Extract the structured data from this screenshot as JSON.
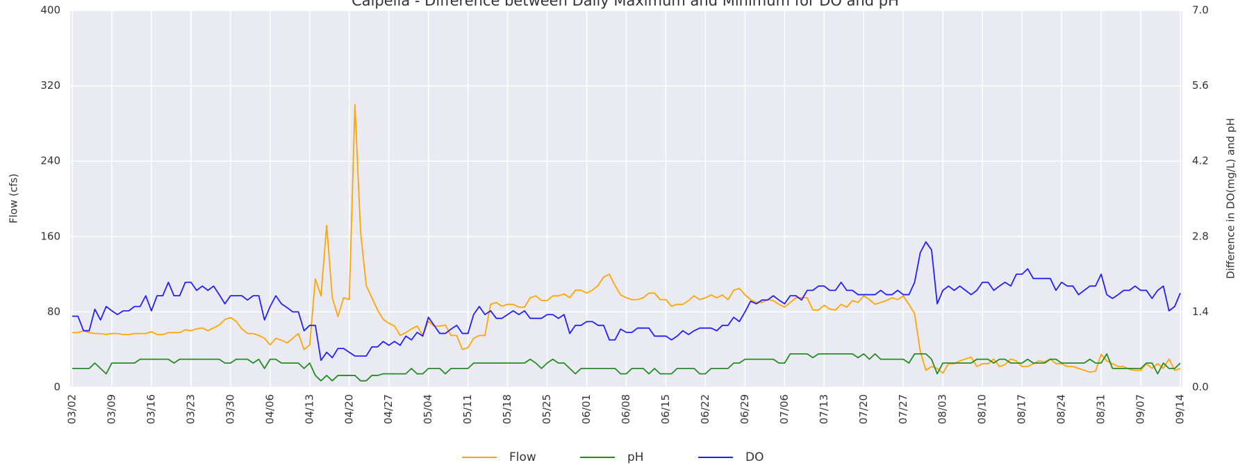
{
  "chart_data": {
    "type": "line",
    "title": "Calpella - Difference between Daily Maximum and Minimum for DO and pH",
    "y_label": "Flow (cfs)",
    "y2_label": "Difference in DO(mg/L) and pH",
    "categories": [
      "03/02",
      null,
      null,
      null,
      null,
      null,
      null,
      "03/09",
      null,
      null,
      null,
      null,
      null,
      null,
      "03/16",
      null,
      null,
      null,
      null,
      null,
      null,
      "03/23",
      null,
      null,
      null,
      null,
      null,
      null,
      "03/30",
      null,
      null,
      null,
      null,
      null,
      null,
      "04/06",
      null,
      null,
      null,
      null,
      null,
      null,
      "04/13",
      null,
      null,
      null,
      null,
      null,
      null,
      "04/20",
      null,
      null,
      null,
      null,
      null,
      null,
      "04/27",
      null,
      null,
      null,
      null,
      null,
      null,
      "05/04",
      null,
      null,
      null,
      null,
      null,
      null,
      "05/11",
      null,
      null,
      null,
      null,
      null,
      null,
      "05/18",
      null,
      null,
      null,
      null,
      null,
      null,
      "05/25",
      null,
      null,
      null,
      null,
      null,
      null,
      "06/01",
      null,
      null,
      null,
      null,
      null,
      null,
      "06/08",
      null,
      null,
      null,
      null,
      null,
      null,
      "06/15",
      null,
      null,
      null,
      null,
      null,
      null,
      "06/22",
      null,
      null,
      null,
      null,
      null,
      null,
      "06/29",
      null,
      null,
      null,
      null,
      null,
      null,
      "07/06",
      null,
      null,
      null,
      null,
      null,
      null,
      "07/13",
      null,
      null,
      null,
      null,
      null,
      null,
      "07/20",
      null,
      null,
      null,
      null,
      null,
      null,
      "07/27",
      null,
      null,
      null,
      null,
      null,
      null,
      "08/03",
      null,
      null,
      null,
      null,
      null,
      null,
      "08/10",
      null,
      null,
      null,
      null,
      null,
      null,
      "08/17",
      null,
      null,
      null,
      null,
      null,
      null,
      "08/24",
      null,
      null,
      null,
      null,
      null,
      null,
      "08/31",
      null,
      null,
      null,
      null,
      null,
      null,
      "09/07",
      null,
      null,
      null,
      null,
      null,
      null,
      "09/14"
    ],
    "series": [
      {
        "name": "Flow",
        "color": "#ffa500",
        "axis": "y",
        "values": [
          58,
          58,
          60,
          58,
          57,
          57,
          56,
          57,
          57,
          56,
          56,
          57,
          57,
          57,
          59,
          56,
          56,
          58,
          58,
          58,
          61,
          60,
          62,
          63,
          60,
          63,
          66,
          72,
          74,
          70,
          62,
          57,
          57,
          55,
          52,
          45,
          52,
          50,
          47,
          52,
          57,
          40,
          45,
          115,
          97,
          172,
          95,
          75,
          95,
          93,
          300,
          165,
          108,
          95,
          82,
          72,
          68,
          65,
          55,
          58,
          62,
          65,
          55,
          70,
          65,
          65,
          66,
          55,
          55,
          40,
          42,
          52,
          55,
          55,
          88,
          90,
          86,
          88,
          88,
          85,
          85,
          95,
          97,
          92,
          92,
          97,
          97,
          99,
          95,
          103,
          103,
          100,
          103,
          108,
          117,
          120,
          108,
          98,
          95,
          93,
          93,
          95,
          100,
          100,
          93,
          93,
          86,
          88,
          88,
          92,
          97,
          93,
          95,
          98,
          95,
          98,
          93,
          103,
          105,
          98,
          93,
          90,
          90,
          93,
          92,
          88,
          85,
          90,
          95,
          95,
          95,
          82,
          82,
          87,
          83,
          82,
          88,
          85,
          92,
          90,
          97,
          93,
          88,
          90,
          92,
          95,
          93,
          97,
          88,
          78,
          38,
          18,
          22,
          20,
          15,
          25,
          25,
          28,
          30,
          32,
          22,
          25,
          25,
          30,
          22,
          24,
          30,
          28,
          22,
          22,
          25,
          28,
          27,
          30,
          25,
          25,
          22,
          22,
          20,
          18,
          16,
          17,
          35,
          28,
          25,
          22,
          22,
          19,
          18,
          18,
          25,
          20,
          25,
          20,
          30,
          18,
          20
        ]
      },
      {
        "name": "pH",
        "color": "#228b22",
        "axis": "y2",
        "values": [
          0.35,
          0.35,
          0.35,
          0.35,
          0.45,
          0.35,
          0.25,
          0.45,
          0.45,
          0.45,
          0.45,
          0.45,
          0.52,
          0.52,
          0.52,
          0.52,
          0.52,
          0.52,
          0.45,
          0.52,
          0.52,
          0.52,
          0.52,
          0.52,
          0.52,
          0.52,
          0.52,
          0.45,
          0.45,
          0.52,
          0.52,
          0.52,
          0.45,
          0.52,
          0.35,
          0.52,
          0.52,
          0.45,
          0.45,
          0.45,
          0.45,
          0.35,
          0.45,
          0.22,
          0.12,
          0.22,
          0.12,
          0.22,
          0.22,
          0.22,
          0.22,
          0.12,
          0.12,
          0.22,
          0.22,
          0.25,
          0.25,
          0.25,
          0.25,
          0.25,
          0.35,
          0.25,
          0.25,
          0.35,
          0.35,
          0.35,
          0.25,
          0.35,
          0.35,
          0.35,
          0.35,
          0.45,
          0.45,
          0.45,
          0.45,
          0.45,
          0.45,
          0.45,
          0.45,
          0.45,
          0.45,
          0.52,
          0.45,
          0.35,
          0.45,
          0.52,
          0.45,
          0.45,
          0.35,
          0.25,
          0.35,
          0.35,
          0.35,
          0.35,
          0.35,
          0.35,
          0.35,
          0.25,
          0.25,
          0.35,
          0.35,
          0.35,
          0.25,
          0.35,
          0.25,
          0.25,
          0.25,
          0.35,
          0.35,
          0.35,
          0.35,
          0.25,
          0.25,
          0.35,
          0.35,
          0.35,
          0.35,
          0.45,
          0.45,
          0.52,
          0.52,
          0.52,
          0.52,
          0.52,
          0.52,
          0.45,
          0.45,
          0.62,
          0.62,
          0.62,
          0.62,
          0.55,
          0.62,
          0.62,
          0.62,
          0.62,
          0.62,
          0.62,
          0.62,
          0.55,
          0.62,
          0.52,
          0.62,
          0.52,
          0.52,
          0.52,
          0.52,
          0.52,
          0.45,
          0.62,
          0.62,
          0.62,
          0.52,
          0.25,
          0.45,
          0.45,
          0.45,
          0.45,
          0.45,
          0.45,
          0.52,
          0.52,
          0.52,
          0.45,
          0.52,
          0.52,
          0.45,
          0.45,
          0.45,
          0.52,
          0.45,
          0.45,
          0.45,
          0.52,
          0.52,
          0.45,
          0.45,
          0.45,
          0.45,
          0.45,
          0.52,
          0.45,
          0.45,
          0.62,
          0.35,
          0.35,
          0.35,
          0.35,
          0.35,
          0.35,
          0.45,
          0.45,
          0.25,
          0.45,
          0.35,
          0.35,
          0.45
        ]
      },
      {
        "name": "DO",
        "color": "#1f1fff",
        "axis": "y2",
        "values": [
          1.32,
          1.32,
          1.05,
          1.05,
          1.45,
          1.25,
          1.5,
          1.42,
          1.35,
          1.42,
          1.42,
          1.5,
          1.5,
          1.7,
          1.42,
          1.7,
          1.7,
          1.95,
          1.7,
          1.7,
          1.95,
          1.95,
          1.8,
          1.88,
          1.8,
          1.88,
          1.72,
          1.55,
          1.7,
          1.7,
          1.7,
          1.62,
          1.7,
          1.7,
          1.25,
          1.5,
          1.7,
          1.55,
          1.48,
          1.4,
          1.4,
          1.05,
          1.15,
          1.15,
          0.5,
          0.65,
          0.55,
          0.72,
          0.72,
          0.65,
          0.58,
          0.58,
          0.58,
          0.75,
          0.75,
          0.85,
          0.78,
          0.85,
          0.78,
          0.95,
          0.88,
          1.02,
          0.95,
          1.3,
          1.15,
          1.0,
          1.0,
          1.08,
          1.15,
          1.0,
          1.0,
          1.35,
          1.5,
          1.35,
          1.42,
          1.28,
          1.28,
          1.35,
          1.42,
          1.35,
          1.42,
          1.28,
          1.28,
          1.28,
          1.35,
          1.35,
          1.28,
          1.35,
          1.0,
          1.15,
          1.15,
          1.22,
          1.22,
          1.15,
          1.15,
          0.88,
          0.88,
          1.08,
          1.02,
          1.02,
          1.1,
          1.1,
          1.1,
          0.95,
          0.95,
          0.95,
          0.88,
          0.95,
          1.05,
          0.98,
          1.05,
          1.1,
          1.1,
          1.1,
          1.05,
          1.15,
          1.15,
          1.3,
          1.22,
          1.4,
          1.6,
          1.55,
          1.62,
          1.62,
          1.7,
          1.62,
          1.55,
          1.7,
          1.7,
          1.62,
          1.8,
          1.8,
          1.88,
          1.88,
          1.8,
          1.8,
          1.95,
          1.8,
          1.8,
          1.72,
          1.72,
          1.72,
          1.72,
          1.8,
          1.72,
          1.72,
          1.8,
          1.72,
          1.72,
          1.95,
          2.5,
          2.7,
          2.55,
          1.55,
          1.8,
          1.88,
          1.8,
          1.88,
          1.8,
          1.72,
          1.8,
          1.95,
          1.95,
          1.8,
          1.88,
          1.95,
          1.88,
          2.1,
          2.1,
          2.2,
          2.02,
          2.02,
          2.02,
          2.02,
          1.8,
          1.95,
          1.88,
          1.88,
          1.72,
          1.8,
          1.88,
          1.88,
          2.1,
          1.72,
          1.65,
          1.72,
          1.8,
          1.8,
          1.88,
          1.8,
          1.8,
          1.65,
          1.8,
          1.88,
          1.42,
          1.5,
          1.75
        ]
      }
    ],
    "ylim": [
      0,
      400
    ],
    "yticks": [
      0,
      80,
      160,
      240,
      320,
      400
    ],
    "y2lim": [
      0,
      7
    ],
    "y2ticks": [
      {
        "value": 0,
        "label": "0.0"
      },
      1.4,
      2.8,
      4.2,
      5.6,
      {
        "value": 7,
        "label": "7.0"
      }
    ],
    "grid": true,
    "legend": "bottom"
  }
}
